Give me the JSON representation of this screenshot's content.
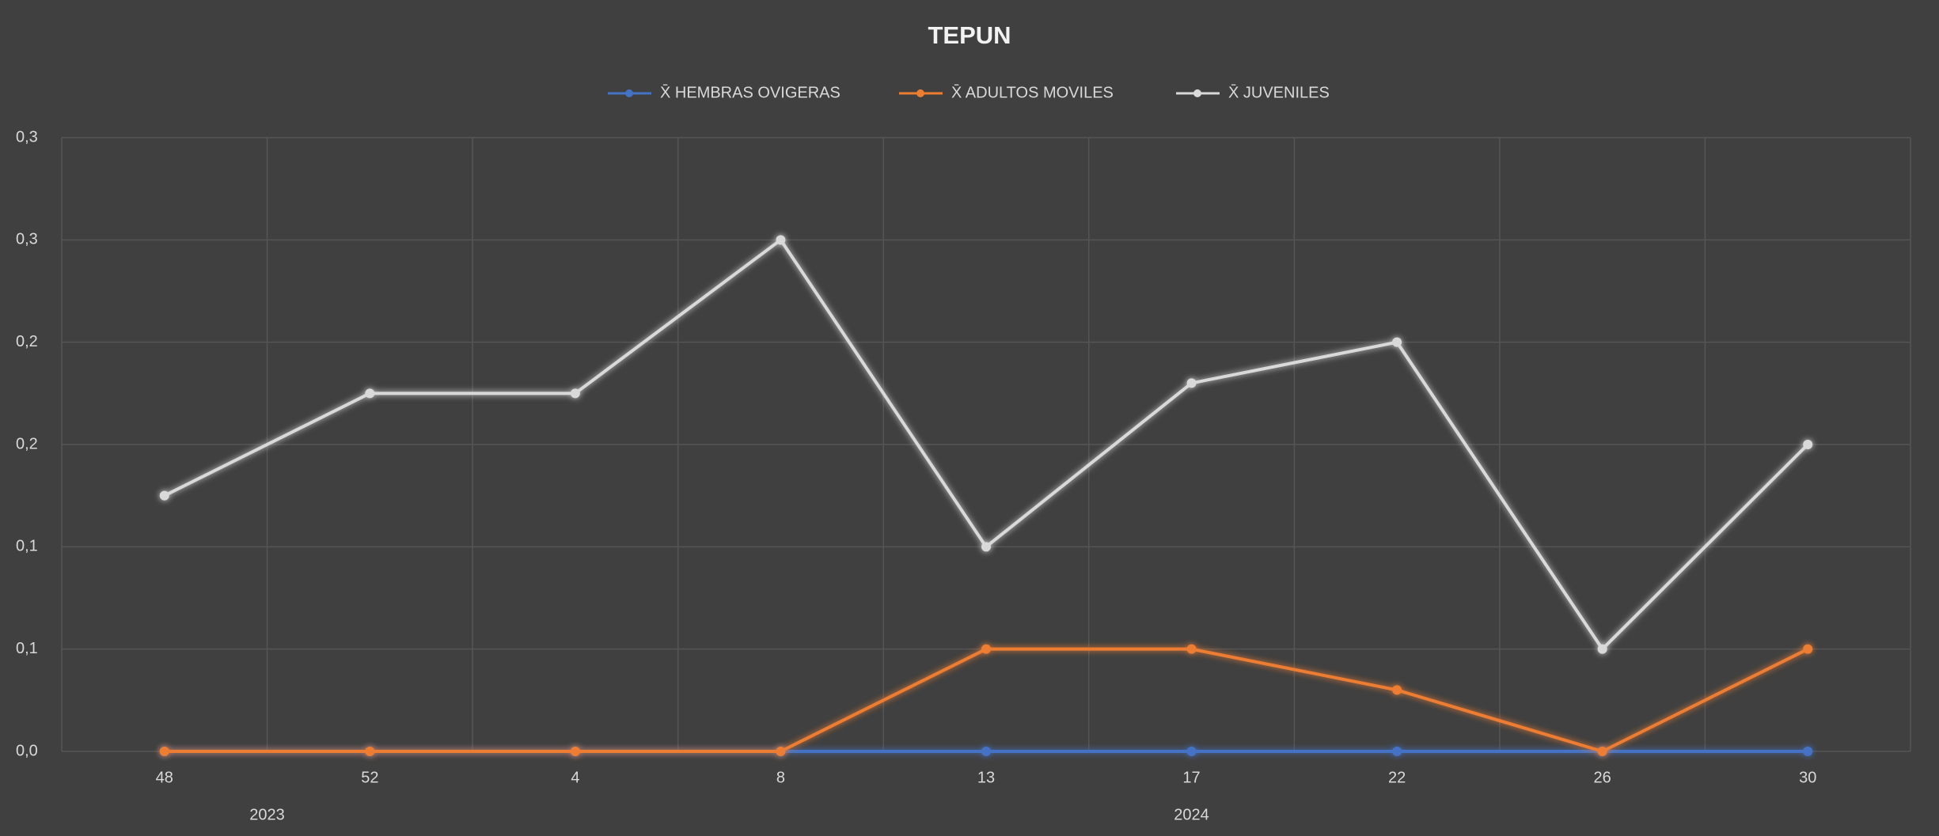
{
  "chart_data": {
    "type": "line",
    "title": "TEPUN",
    "categories": [
      "48",
      "52",
      "4",
      "8",
      "13",
      "17",
      "22",
      "26",
      "30"
    ],
    "year_groups": [
      {
        "label": "2023",
        "start": 0,
        "end": 1
      },
      {
        "label": "2024",
        "start": 2,
        "end": 8
      }
    ],
    "series": [
      {
        "name": "X̄ HEMBRAS OVIGERAS",
        "color": "#4472c4",
        "values": [
          0,
          0,
          0,
          0,
          0,
          0,
          0,
          0,
          0
        ]
      },
      {
        "name": "X̄ ADULTOS MOVILES",
        "color": "#ed7d31",
        "values": [
          0,
          0,
          0,
          0,
          0.05,
          0.05,
          0.03,
          0,
          0.05
        ]
      },
      {
        "name": "X̄ JUVENILES",
        "color": "#d9d9d9",
        "values": [
          0.125,
          0.175,
          0.175,
          0.25,
          0.1,
          0.18,
          0.2,
          0.05,
          0.15
        ]
      }
    ],
    "ylim": [
      0,
      0.3
    ],
    "yticks": [
      {
        "value": 0,
        "label": "0,0"
      },
      {
        "value": 0.05,
        "label": "0,1"
      },
      {
        "value": 0.1,
        "label": "0,1"
      },
      {
        "value": 0.15,
        "label": "0,2"
      },
      {
        "value": 0.2,
        "label": "0,2"
      },
      {
        "value": 0.25,
        "label": "0,3"
      },
      {
        "value": 0.3,
        "label": "0,3"
      }
    ],
    "grid": true,
    "legend": "top"
  }
}
